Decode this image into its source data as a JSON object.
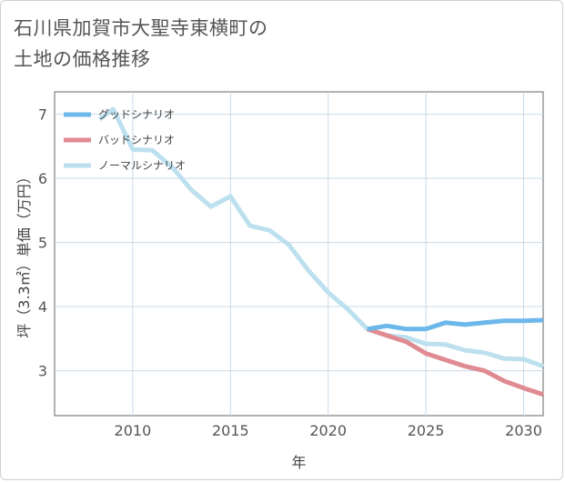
{
  "title": "石川県加賀市大聖寺東横町の\n土地の価格推移",
  "chart_data": {
    "type": "line",
    "xlabel": "年",
    "ylabel": "坪（3.3㎡）単価（万円）",
    "xlim": [
      2006,
      2031
    ],
    "ylim": [
      2.3,
      7.35
    ],
    "xticks": [
      2010,
      2015,
      2020,
      2025,
      2030
    ],
    "yticks": [
      3,
      4,
      5,
      6,
      7
    ],
    "grid": true,
    "legend_position": "top-left",
    "series": [
      {
        "name": "グッドシナリオ",
        "color": "#6db8ea",
        "x": [
          2022,
          2023,
          2024,
          2025,
          2026,
          2027,
          2028,
          2029,
          2030,
          2031
        ],
        "y": [
          3.65,
          3.7,
          3.65,
          3.65,
          3.75,
          3.72,
          3.75,
          3.78,
          3.78,
          3.79
        ]
      },
      {
        "name": "バッドシナリオ",
        "color": "#e08a92",
        "x": [
          2022,
          2023,
          2024,
          2025,
          2026,
          2027,
          2028,
          2029,
          2030,
          2031
        ],
        "y": [
          3.65,
          3.55,
          3.45,
          3.27,
          3.17,
          3.07,
          3.0,
          2.84,
          2.73,
          2.63
        ]
      },
      {
        "name": "ノーマルシナリオ",
        "color": "#bde0ef",
        "x": [
          2008.3,
          2009,
          2010,
          2011,
          2012,
          2013,
          2014,
          2015,
          2016,
          2017,
          2018,
          2019,
          2020,
          2021,
          2022,
          2023,
          2024,
          2025,
          2026,
          2027,
          2028,
          2029,
          2030,
          2031
        ],
        "y": [
          6.92,
          7.08,
          6.45,
          6.44,
          6.18,
          5.82,
          5.56,
          5.72,
          5.26,
          5.19,
          4.96,
          4.56,
          4.22,
          3.96,
          3.65,
          3.55,
          3.52,
          3.42,
          3.41,
          3.32,
          3.28,
          3.19,
          3.18,
          3.07
        ]
      }
    ]
  }
}
